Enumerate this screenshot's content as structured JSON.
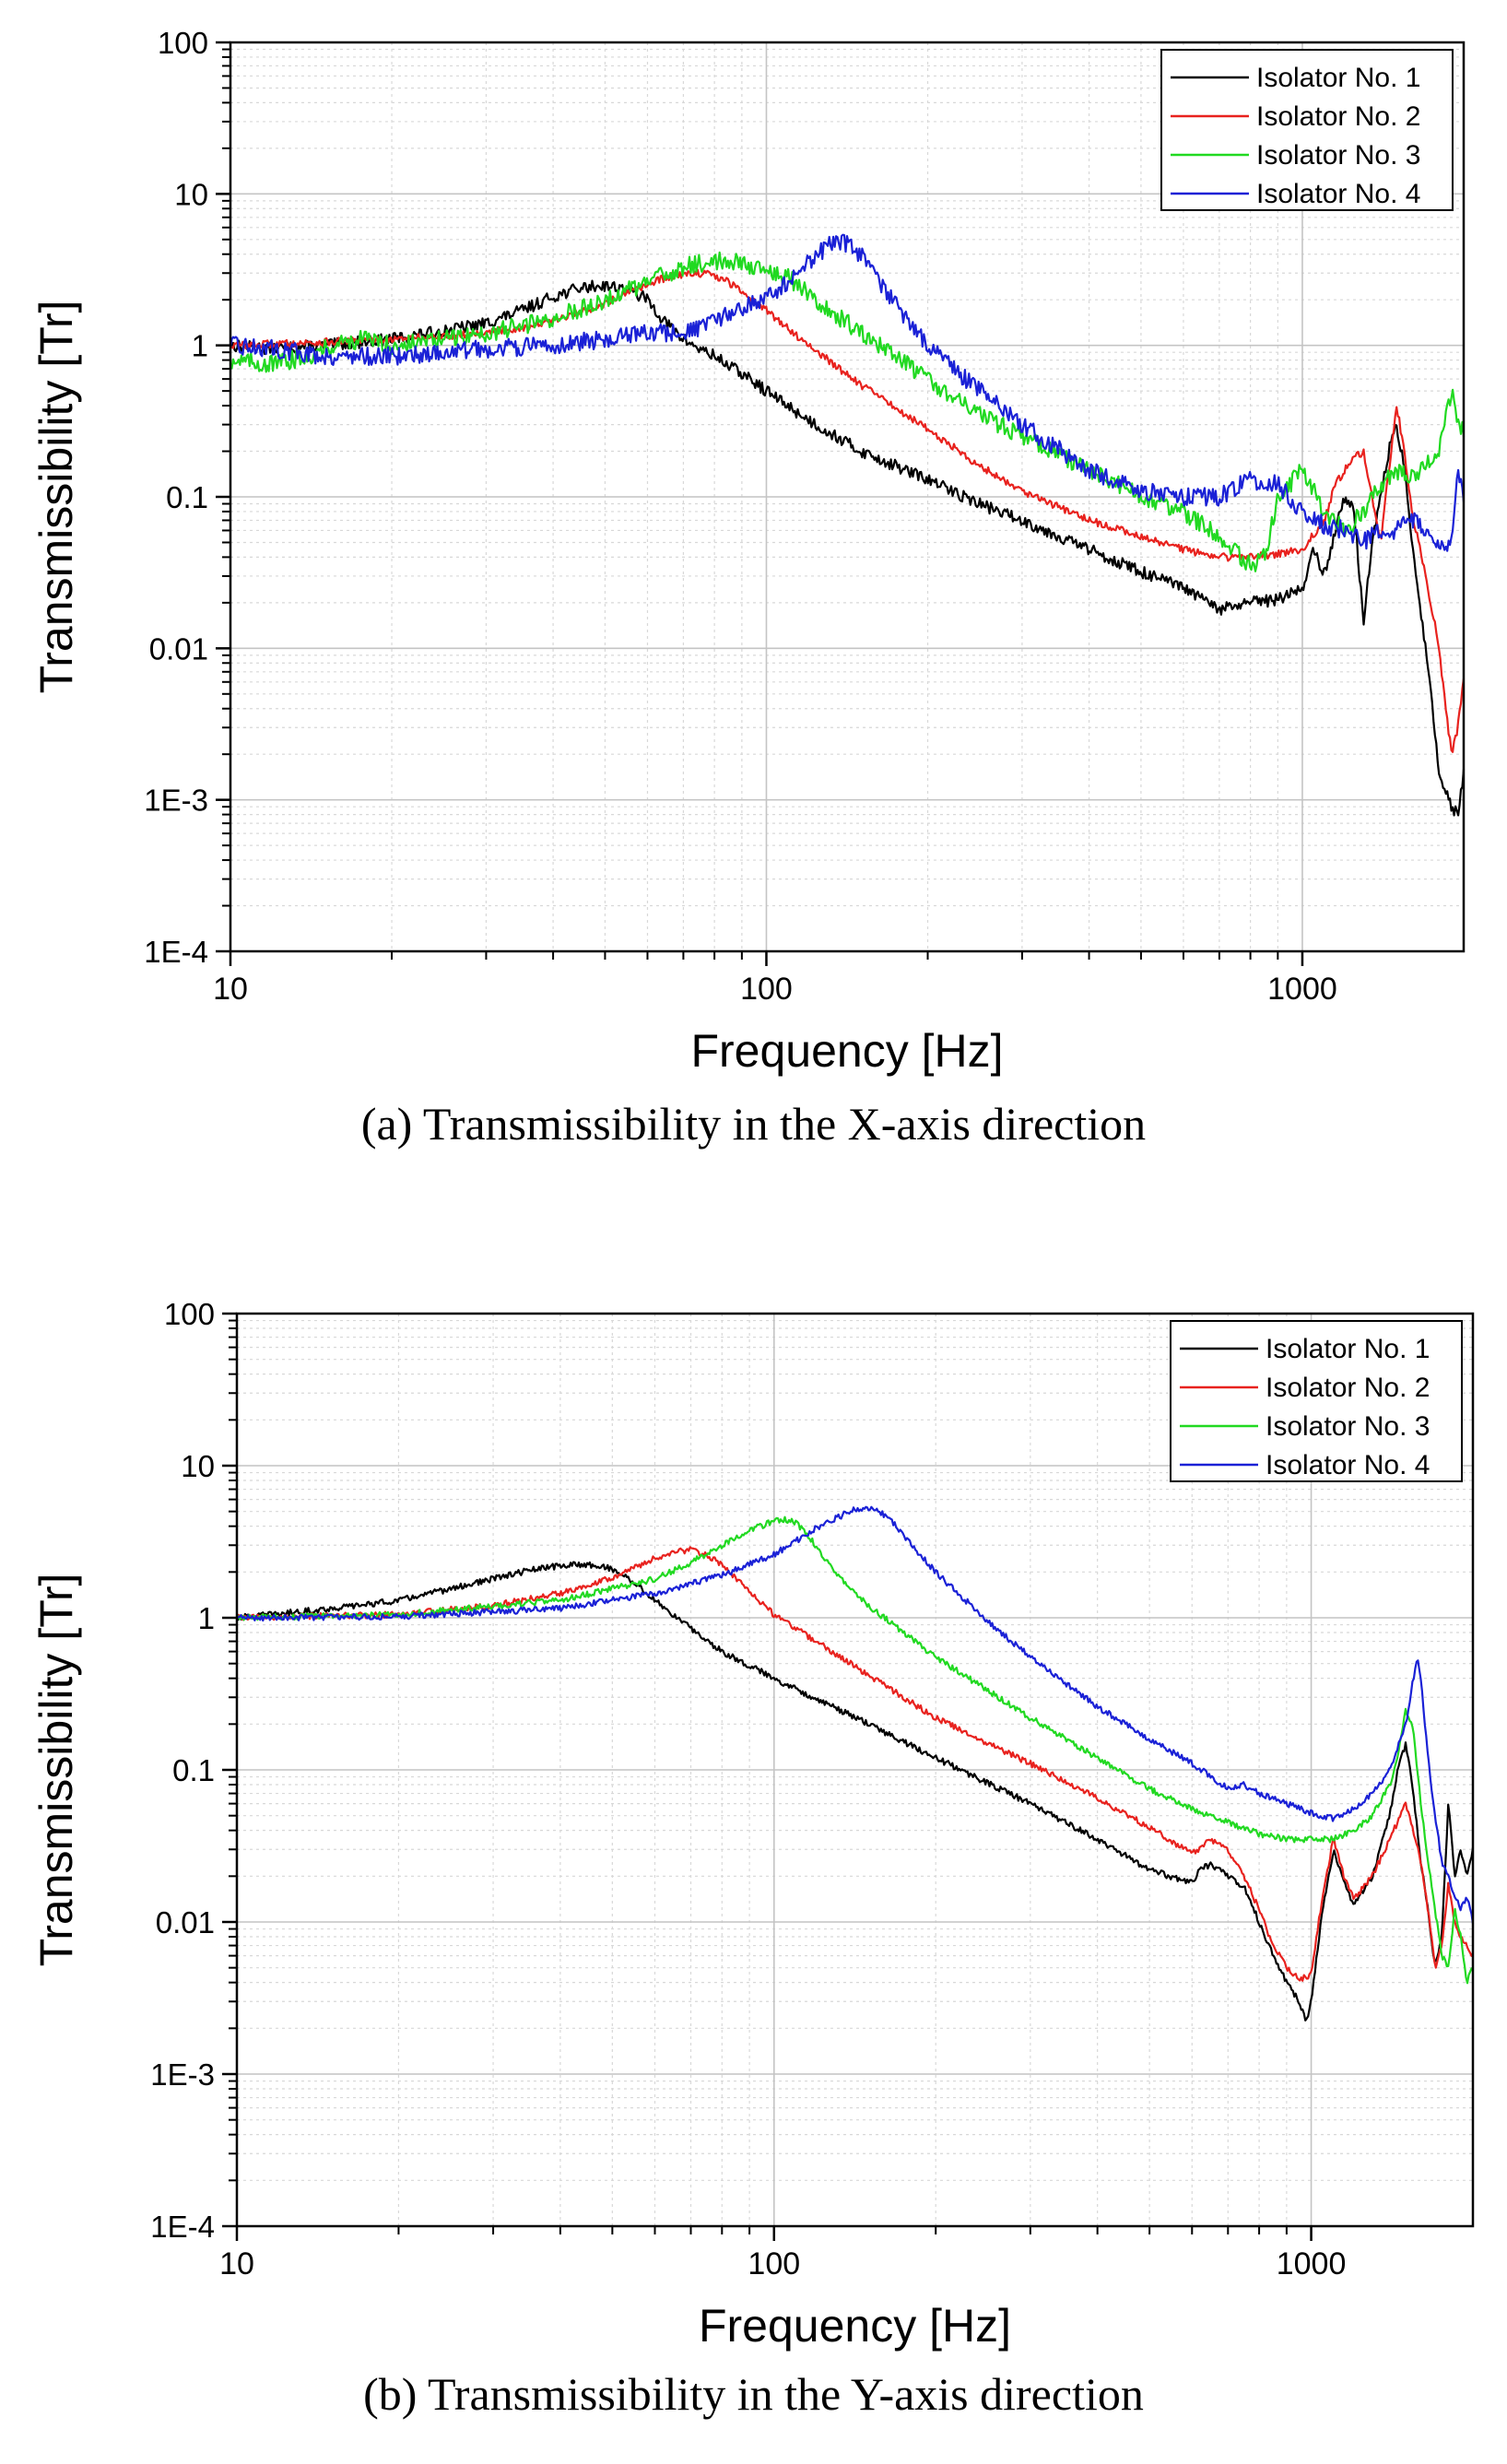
{
  "chart_data": [
    {
      "type": "line",
      "panel": "a",
      "caption": "(a) Transmissibility in the X-axis direction",
      "xlabel": "Frequency [Hz]",
      "ylabel": "Transmissibility [Tr]",
      "xscale": "log",
      "yscale": "log",
      "xlim": [
        10,
        2000
      ],
      "ylim": [
        0.0001,
        100
      ],
      "xticks": [
        10,
        100,
        1000
      ],
      "xtick_labels": [
        "10",
        "100",
        "1000"
      ],
      "yticks": [
        0.0001,
        0.001,
        0.01,
        0.1,
        1,
        10,
        100
      ],
      "ytick_labels": [
        "1E-4",
        "1E-3",
        "0.01",
        "0.1",
        "1",
        "10",
        "100"
      ],
      "grid": true,
      "legend_position": "top-right",
      "series": [
        {
          "name": "Isolator No. 1",
          "color": "#000000",
          "noise": 0.04,
          "x": [
            10,
            12,
            15,
            20,
            25,
            30,
            35,
            40,
            45,
            50,
            55,
            60,
            65,
            70,
            75,
            80,
            90,
            100,
            120,
            150,
            200,
            250,
            300,
            400,
            500,
            600,
            700,
            800,
            900,
            1000,
            1050,
            1100,
            1150,
            1200,
            1250,
            1300,
            1350,
            1400,
            1450,
            1500,
            1550,
            1600,
            1700,
            1800,
            1900,
            1950,
            2000
          ],
          "y": [
            1.0,
            0.95,
            1.0,
            1.1,
            1.25,
            1.4,
            1.7,
            2.1,
            2.4,
            2.5,
            2.35,
            2.0,
            1.4,
            1.1,
            0.95,
            0.85,
            0.65,
            0.5,
            0.32,
            0.2,
            0.13,
            0.09,
            0.07,
            0.045,
            0.032,
            0.025,
            0.018,
            0.02,
            0.021,
            0.025,
            0.045,
            0.03,
            0.06,
            0.1,
            0.08,
            0.015,
            0.05,
            0.1,
            0.2,
            0.3,
            0.15,
            0.05,
            0.01,
            0.0015,
            0.0009,
            0.0008,
            0.0015
          ]
        },
        {
          "name": "Isolator No. 2",
          "color": "#e8221e",
          "noise": 0.025,
          "x": [
            10,
            15,
            20,
            25,
            30,
            35,
            40,
            45,
            50,
            55,
            60,
            65,
            70,
            75,
            80,
            85,
            90,
            100,
            120,
            150,
            200,
            250,
            300,
            400,
            500,
            600,
            700,
            800,
            900,
            1000,
            1100,
            1150,
            1200,
            1250,
            1300,
            1350,
            1400,
            1450,
            1500,
            1550,
            1600,
            1700,
            1800,
            1850,
            1900,
            1950,
            2000
          ],
          "y": [
            1.0,
            1.05,
            1.1,
            1.15,
            1.22,
            1.3,
            1.45,
            1.65,
            1.9,
            2.2,
            2.5,
            2.8,
            2.95,
            3.0,
            2.9,
            2.6,
            2.3,
            1.7,
            1.0,
            0.55,
            0.28,
            0.16,
            0.11,
            0.07,
            0.055,
            0.045,
            0.04,
            0.04,
            0.042,
            0.045,
            0.07,
            0.12,
            0.15,
            0.18,
            0.2,
            0.1,
            0.05,
            0.15,
            0.4,
            0.2,
            0.08,
            0.03,
            0.01,
            0.004,
            0.002,
            0.003,
            0.006
          ]
        },
        {
          "name": "Isolator No. 3",
          "color": "#21d921",
          "noise": 0.06,
          "x": [
            10,
            12,
            14,
            16,
            18,
            20,
            25,
            30,
            40,
            50,
            60,
            70,
            80,
            90,
            100,
            110,
            120,
            150,
            200,
            250,
            300,
            400,
            500,
            600,
            700,
            800,
            850,
            900,
            1000,
            1100,
            1200,
            1300,
            1400,
            1500,
            1600,
            1700,
            1800,
            1900,
            1950,
            2000
          ],
          "y": [
            0.8,
            0.75,
            0.85,
            1.05,
            1.1,
            1.0,
            1.1,
            1.2,
            1.5,
            2.0,
            2.6,
            3.3,
            3.6,
            3.5,
            3.2,
            2.8,
            2.2,
            1.2,
            0.6,
            0.35,
            0.25,
            0.15,
            0.1,
            0.08,
            0.055,
            0.035,
            0.04,
            0.1,
            0.15,
            0.08,
            0.06,
            0.08,
            0.12,
            0.15,
            0.14,
            0.16,
            0.2,
            0.5,
            0.3,
            0.28
          ]
        },
        {
          "name": "Isolator No. 4",
          "color": "#1a21d6",
          "noise": 0.06,
          "x": [
            10,
            12,
            15,
            20,
            25,
            30,
            40,
            50,
            60,
            70,
            80,
            90,
            100,
            110,
            120,
            130,
            140,
            150,
            160,
            180,
            200,
            250,
            300,
            400,
            500,
            600,
            700,
            800,
            900,
            1000,
            1100,
            1200,
            1300,
            1400,
            1500,
            1600,
            1700,
            1800,
            1850,
            1900,
            1950,
            2000
          ],
          "y": [
            1.0,
            0.95,
            0.85,
            0.85,
            0.9,
            0.95,
            1.0,
            1.1,
            1.2,
            1.2,
            1.4,
            1.8,
            2.0,
            2.6,
            3.6,
            4.5,
            4.8,
            4.0,
            2.8,
            1.6,
            1.0,
            0.5,
            0.3,
            0.15,
            0.11,
            0.1,
            0.1,
            0.13,
            0.12,
            0.08,
            0.065,
            0.06,
            0.05,
            0.06,
            0.06,
            0.07,
            0.06,
            0.05,
            0.05,
            0.05,
            0.15,
            0.1
          ]
        }
      ]
    },
    {
      "type": "line",
      "panel": "b",
      "caption": "(b) Transmissibility in the Y-axis direction",
      "xlabel": "Frequency [Hz]",
      "ylabel": "Transmissibility [Tr]",
      "xscale": "log",
      "yscale": "log",
      "xlim": [
        10,
        2000
      ],
      "ylim": [
        0.0001,
        100
      ],
      "xticks": [
        10,
        100,
        1000
      ],
      "xtick_labels": [
        "10",
        "100",
        "1000"
      ],
      "yticks": [
        0.0001,
        0.001,
        0.01,
        0.1,
        1,
        10,
        100
      ],
      "ytick_labels": [
        "1E-4",
        "1E-3",
        "0.01",
        "0.1",
        "1",
        "10",
        "100"
      ],
      "grid": true,
      "legend_position": "top-right",
      "series": [
        {
          "name": "Isolator No. 1",
          "color": "#000000",
          "noise": 0.02,
          "x": [
            10,
            15,
            20,
            25,
            30,
            35,
            40,
            45,
            50,
            55,
            60,
            70,
            80,
            100,
            150,
            200,
            300,
            400,
            500,
            600,
            620,
            650,
            700,
            750,
            800,
            850,
            900,
            950,
            980,
            1000,
            1050,
            1100,
            1150,
            1200,
            1300,
            1400,
            1450,
            1500,
            1550,
            1600,
            1650,
            1700,
            1750,
            1800,
            1850,
            1900,
            1950,
            2000
          ],
          "y": [
            1.0,
            1.15,
            1.3,
            1.55,
            1.8,
            2.05,
            2.2,
            2.25,
            2.1,
            1.7,
            1.3,
            0.85,
            0.6,
            0.4,
            0.2,
            0.12,
            0.06,
            0.035,
            0.022,
            0.018,
            0.022,
            0.024,
            0.02,
            0.017,
            0.01,
            0.006,
            0.004,
            0.003,
            0.0022,
            0.003,
            0.012,
            0.03,
            0.018,
            0.013,
            0.02,
            0.05,
            0.1,
            0.15,
            0.07,
            0.025,
            0.012,
            0.005,
            0.008,
            0.06,
            0.02,
            0.03,
            0.02,
            0.03
          ]
        },
        {
          "name": "Isolator No. 2",
          "color": "#e8221e",
          "noise": 0.02,
          "x": [
            10,
            20,
            30,
            40,
            50,
            60,
            65,
            70,
            75,
            80,
            90,
            100,
            150,
            200,
            300,
            400,
            500,
            600,
            650,
            700,
            750,
            800,
            850,
            900,
            950,
            1000,
            1050,
            1100,
            1150,
            1200,
            1300,
            1400,
            1500,
            1550,
            1600,
            1650,
            1700,
            1750,
            1800,
            1850,
            1900,
            2000
          ],
          "y": [
            1.0,
            1.05,
            1.2,
            1.45,
            1.85,
            2.45,
            2.7,
            2.8,
            2.6,
            2.2,
            1.5,
            1.05,
            0.42,
            0.22,
            0.11,
            0.065,
            0.042,
            0.028,
            0.035,
            0.03,
            0.02,
            0.012,
            0.007,
            0.005,
            0.0042,
            0.0045,
            0.015,
            0.035,
            0.02,
            0.014,
            0.02,
            0.035,
            0.06,
            0.04,
            0.025,
            0.012,
            0.005,
            0.007,
            0.018,
            0.01,
            0.008,
            0.006
          ]
        },
        {
          "name": "Isolator No. 3",
          "color": "#21d921",
          "noise": 0.02,
          "x": [
            10,
            20,
            40,
            60,
            70,
            80,
            90,
            100,
            105,
            110,
            115,
            120,
            130,
            150,
            200,
            300,
            400,
            500,
            600,
            700,
            800,
            900,
            1000,
            1100,
            1200,
            1300,
            1400,
            1450,
            1500,
            1550,
            1600,
            1650,
            1700,
            1750,
            1800,
            1850,
            1900,
            1950,
            2000
          ],
          "y": [
            1.0,
            1.05,
            1.3,
            1.8,
            2.3,
            3.0,
            3.8,
            4.3,
            4.4,
            4.2,
            3.6,
            2.9,
            2.0,
            1.2,
            0.55,
            0.22,
            0.12,
            0.075,
            0.055,
            0.045,
            0.038,
            0.035,
            0.035,
            0.035,
            0.04,
            0.05,
            0.08,
            0.12,
            0.25,
            0.18,
            0.06,
            0.025,
            0.012,
            0.006,
            0.005,
            0.012,
            0.008,
            0.004,
            0.005
          ]
        },
        {
          "name": "Isolator No. 4",
          "color": "#1a21d6",
          "noise": 0.02,
          "x": [
            10,
            20,
            40,
            60,
            80,
            100,
            120,
            140,
            150,
            160,
            170,
            180,
            200,
            250,
            300,
            400,
            500,
            600,
            700,
            750,
            800,
            900,
            1000,
            1100,
            1200,
            1300,
            1400,
            1500,
            1550,
            1580,
            1600,
            1650,
            1700,
            1750,
            1800,
            1850,
            1900,
            1950,
            2000
          ],
          "y": [
            1.0,
            1.02,
            1.15,
            1.45,
            1.9,
            2.6,
            3.9,
            5.1,
            5.3,
            4.8,
            3.9,
            3.0,
            2.0,
            0.95,
            0.55,
            0.26,
            0.16,
            0.11,
            0.075,
            0.08,
            0.07,
            0.06,
            0.052,
            0.048,
            0.055,
            0.07,
            0.1,
            0.2,
            0.4,
            0.55,
            0.4,
            0.12,
            0.05,
            0.025,
            0.02,
            0.015,
            0.012,
            0.015,
            0.01
          ]
        }
      ]
    }
  ]
}
